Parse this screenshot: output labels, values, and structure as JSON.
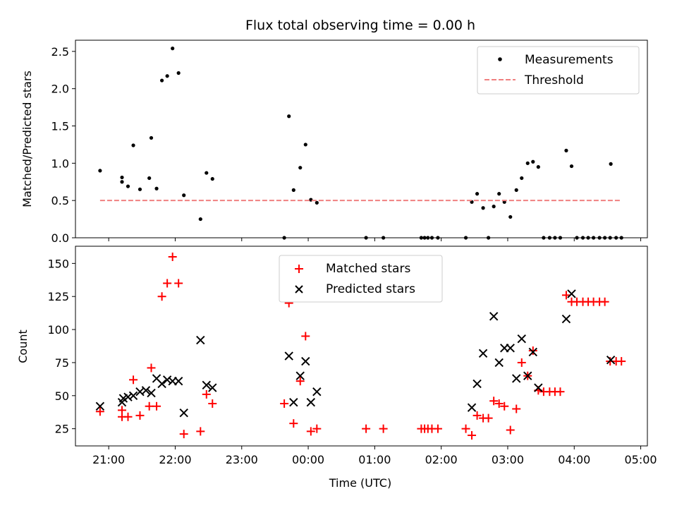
{
  "chart_data": [
    {
      "type": "scatter",
      "title": "Flux total observing time = 0.00 h",
      "xlabel": "",
      "ylabel": "Matched/Predicted stars",
      "xlim": [
        20.5,
        29.1
      ],
      "ylim": [
        0,
        2.65
      ],
      "yticks": [
        0.0,
        0.5,
        1.0,
        1.5,
        2.0,
        2.5
      ],
      "ytick_labels": [
        "0.0",
        "0.5",
        "1.0",
        "1.5",
        "2.0",
        "2.5"
      ],
      "xticks": [
        21,
        22,
        23,
        24,
        25,
        26,
        27,
        28,
        29
      ],
      "legend_position": "top-right",
      "legend": [
        "Measurements",
        "Threshold"
      ],
      "series": [
        {
          "name": "Measurements",
          "marker": "dot",
          "color": "#000000",
          "points": [
            [
              20.87,
              0.9
            ],
            [
              21.2,
              0.81
            ],
            [
              21.2,
              0.75
            ],
            [
              21.29,
              0.69
            ],
            [
              21.37,
              1.24
            ],
            [
              21.47,
              0.65
            ],
            [
              21.61,
              0.8
            ],
            [
              21.64,
              1.34
            ],
            [
              21.72,
              0.66
            ],
            [
              21.8,
              2.11
            ],
            [
              21.88,
              2.17
            ],
            [
              21.96,
              2.54
            ],
            [
              22.05,
              2.21
            ],
            [
              22.13,
              0.57
            ],
            [
              22.38,
              0.25
            ],
            [
              22.47,
              0.87
            ],
            [
              22.56,
              0.79
            ],
            [
              23.64,
              0.0
            ],
            [
              23.71,
              1.63
            ],
            [
              23.78,
              0.64
            ],
            [
              23.88,
              0.94
            ],
            [
              23.96,
              1.25
            ],
            [
              24.04,
              0.51
            ],
            [
              24.13,
              0.47
            ],
            [
              24.87,
              0.0
            ],
            [
              25.13,
              0.0
            ],
            [
              25.7,
              0.0
            ],
            [
              25.75,
              0.0
            ],
            [
              25.8,
              0.0
            ],
            [
              25.86,
              0.0
            ],
            [
              25.95,
              0.0
            ],
            [
              26.37,
              0.0
            ],
            [
              26.46,
              0.48
            ],
            [
              26.54,
              0.59
            ],
            [
              26.63,
              0.4
            ],
            [
              26.71,
              0.0
            ],
            [
              26.79,
              0.42
            ],
            [
              26.87,
              0.59
            ],
            [
              26.95,
              0.48
            ],
            [
              27.04,
              0.28
            ],
            [
              27.13,
              0.64
            ],
            [
              27.21,
              0.8
            ],
            [
              27.3,
              1.0
            ],
            [
              27.38,
              1.02
            ],
            [
              27.46,
              0.95
            ],
            [
              27.54,
              0.0
            ],
            [
              27.63,
              0.0
            ],
            [
              27.71,
              0.0
            ],
            [
              27.79,
              0.0
            ],
            [
              27.88,
              1.17
            ],
            [
              27.96,
              0.96
            ],
            [
              28.04,
              0.0
            ],
            [
              28.13,
              0.0
            ],
            [
              28.21,
              0.0
            ],
            [
              28.29,
              0.0
            ],
            [
              28.38,
              0.0
            ],
            [
              28.46,
              0.0
            ],
            [
              28.54,
              0.0
            ],
            [
              28.55,
              0.99
            ],
            [
              28.63,
              0.0
            ],
            [
              28.71,
              0.0
            ]
          ]
        },
        {
          "name": "Threshold",
          "style": "dashed",
          "color": "#f08080",
          "points": [
            [
              20.87,
              0.5
            ],
            [
              28.71,
              0.5
            ]
          ]
        }
      ]
    },
    {
      "type": "scatter",
      "title": "",
      "xlabel": "Time (UTC)",
      "ylabel": "Count",
      "xlim": [
        20.5,
        29.1
      ],
      "ylim": [
        12,
        163
      ],
      "yticks": [
        25,
        50,
        75,
        100,
        125,
        150
      ],
      "ytick_labels": [
        "25",
        "50",
        "75",
        "100",
        "125",
        "150"
      ],
      "xticks": [
        21,
        22,
        23,
        24,
        25,
        26,
        27,
        28,
        29
      ],
      "xtick_labels": [
        "21:00",
        "22:00",
        "23:00",
        "00:00",
        "01:00",
        "02:00",
        "03:00",
        "04:00",
        "05:00"
      ],
      "legend_position": "top-center",
      "legend": [
        "Matched stars",
        "Predicted stars"
      ],
      "series": [
        {
          "name": "Matched stars",
          "marker": "plus",
          "color": "#ff0000",
          "points": [
            [
              20.87,
              38
            ],
            [
              21.2,
              34
            ],
            [
              21.2,
              39
            ],
            [
              21.29,
              34
            ],
            [
              21.37,
              62
            ],
            [
              21.47,
              35
            ],
            [
              21.61,
              42
            ],
            [
              21.64,
              71
            ],
            [
              21.72,
              42
            ],
            [
              21.8,
              125
            ],
            [
              21.88,
              135
            ],
            [
              21.96,
              155
            ],
            [
              22.05,
              135
            ],
            [
              22.13,
              21
            ],
            [
              22.38,
              23
            ],
            [
              22.47,
              51
            ],
            [
              22.56,
              44
            ],
            [
              23.64,
              44
            ],
            [
              23.71,
              120
            ],
            [
              23.78,
              29
            ],
            [
              23.88,
              61
            ],
            [
              23.96,
              95
            ],
            [
              24.04,
              23
            ],
            [
              24.13,
              25
            ],
            [
              24.87,
              25
            ],
            [
              25.13,
              25
            ],
            [
              25.7,
              25
            ],
            [
              25.75,
              25
            ],
            [
              25.8,
              25
            ],
            [
              25.86,
              25
            ],
            [
              25.95,
              25
            ],
            [
              26.37,
              25
            ],
            [
              26.46,
              20
            ],
            [
              26.54,
              35
            ],
            [
              26.63,
              33
            ],
            [
              26.71,
              33
            ],
            [
              26.79,
              46
            ],
            [
              26.87,
              44
            ],
            [
              26.95,
              42
            ],
            [
              27.04,
              24
            ],
            [
              27.13,
              40
            ],
            [
              27.21,
              75
            ],
            [
              27.3,
              65
            ],
            [
              27.38,
              84
            ],
            [
              27.46,
              54
            ],
            [
              27.54,
              53
            ],
            [
              27.63,
              53
            ],
            [
              27.71,
              53
            ],
            [
              27.79,
              53
            ],
            [
              27.88,
              126
            ],
            [
              27.96,
              121
            ],
            [
              28.04,
              121
            ],
            [
              28.13,
              121
            ],
            [
              28.21,
              121
            ],
            [
              28.29,
              121
            ],
            [
              28.38,
              121
            ],
            [
              28.46,
              121
            ],
            [
              28.54,
              76
            ],
            [
              28.63,
              76
            ],
            [
              28.71,
              76
            ]
          ]
        },
        {
          "name": "Predicted stars",
          "marker": "x",
          "color": "#000000",
          "points": [
            [
              20.87,
              42
            ],
            [
              21.2,
              45
            ],
            [
              21.22,
              48
            ],
            [
              21.29,
              49
            ],
            [
              21.37,
              50
            ],
            [
              21.47,
              53
            ],
            [
              21.56,
              54
            ],
            [
              21.64,
              52
            ],
            [
              21.72,
              63
            ],
            [
              21.8,
              59
            ],
            [
              21.88,
              62
            ],
            [
              21.96,
              61
            ],
            [
              22.05,
              61
            ],
            [
              22.13,
              37
            ],
            [
              22.38,
              92
            ],
            [
              22.47,
              58
            ],
            [
              22.56,
              56
            ],
            [
              23.71,
              80
            ],
            [
              23.78,
              45
            ],
            [
              23.88,
              65
            ],
            [
              23.96,
              76
            ],
            [
              24.04,
              45
            ],
            [
              24.13,
              53
            ],
            [
              26.46,
              41
            ],
            [
              26.54,
              59
            ],
            [
              26.63,
              82
            ],
            [
              26.79,
              110
            ],
            [
              26.87,
              75
            ],
            [
              26.95,
              86
            ],
            [
              27.04,
              86
            ],
            [
              27.13,
              63
            ],
            [
              27.21,
              93
            ],
            [
              27.3,
              65
            ],
            [
              27.38,
              83
            ],
            [
              27.46,
              56
            ],
            [
              27.88,
              108
            ],
            [
              27.96,
              127
            ],
            [
              28.55,
              77
            ]
          ]
        }
      ]
    }
  ]
}
